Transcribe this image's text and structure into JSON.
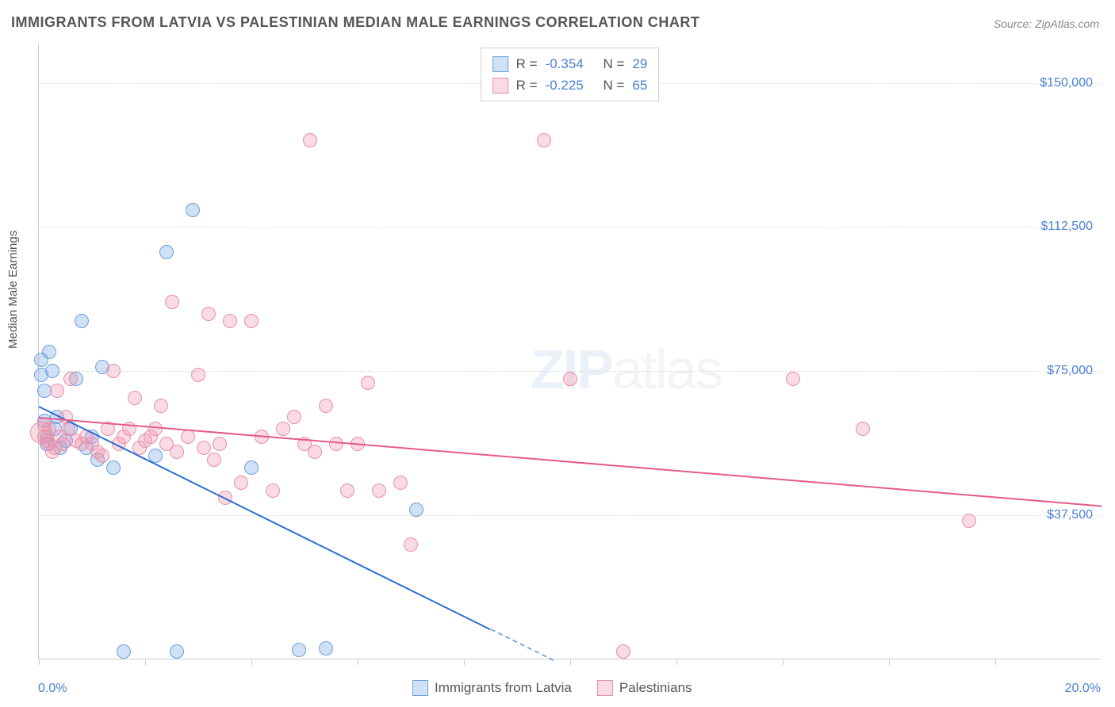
{
  "title": "IMMIGRANTS FROM LATVIA VS PALESTINIAN MEDIAN MALE EARNINGS CORRELATION CHART",
  "source_prefix": "Source: ",
  "source_name": "ZipAtlas.com",
  "watermark_a": "ZIP",
  "watermark_b": "atlas",
  "chart": {
    "type": "scatter",
    "ylabel": "Median Male Earnings",
    "xmin": 0.0,
    "xmax": 20.0,
    "ymin": 0,
    "ymax": 160000,
    "yticks": [
      {
        "v": 37500,
        "label": "$37,500"
      },
      {
        "v": 75000,
        "label": "$75,000"
      },
      {
        "v": 112500,
        "label": "$112,500"
      },
      {
        "v": 150000,
        "label": "$150,000"
      }
    ],
    "xtick_positions": [
      0,
      2,
      4,
      6,
      8,
      10,
      12,
      14,
      16,
      18
    ],
    "xtick_labels": {
      "left": "0.0%",
      "right": "20.0%"
    },
    "background_color": "#ffffff",
    "grid_color": "#e2e2e2",
    "axis_color": "#cccccc",
    "label_color": "#555555",
    "tick_label_color": "#4a7fd6",
    "marker_radius": 9,
    "series": [
      {
        "name": "Immigrants from Latvia",
        "fill": "rgba(120,170,230,0.35)",
        "stroke": "#6aa0e0",
        "line_color": "#2e6fd2",
        "R": "-0.354",
        "N": "29",
        "trend": {
          "x1": 0.0,
          "y1": 66000,
          "x2": 8.5,
          "y2": 8000
        },
        "points": [
          {
            "x": 0.05,
            "y": 78000
          },
          {
            "x": 0.05,
            "y": 74000
          },
          {
            "x": 0.1,
            "y": 70000
          },
          {
            "x": 0.1,
            "y": 62000
          },
          {
            "x": 0.15,
            "y": 58000
          },
          {
            "x": 0.15,
            "y": 56000
          },
          {
            "x": 0.2,
            "y": 80000
          },
          {
            "x": 0.25,
            "y": 75000
          },
          {
            "x": 0.3,
            "y": 60000
          },
          {
            "x": 0.35,
            "y": 63000
          },
          {
            "x": 0.4,
            "y": 55000
          },
          {
            "x": 0.5,
            "y": 57000
          },
          {
            "x": 0.6,
            "y": 60000
          },
          {
            "x": 0.7,
            "y": 73000
          },
          {
            "x": 0.8,
            "y": 88000
          },
          {
            "x": 0.9,
            "y": 55000
          },
          {
            "x": 1.0,
            "y": 58000
          },
          {
            "x": 1.1,
            "y": 52000
          },
          {
            "x": 1.2,
            "y": 76000
          },
          {
            "x": 1.4,
            "y": 50000
          },
          {
            "x": 1.6,
            "y": 2000
          },
          {
            "x": 2.2,
            "y": 53000
          },
          {
            "x": 2.6,
            "y": 2000
          },
          {
            "x": 2.9,
            "y": 117000
          },
          {
            "x": 2.4,
            "y": 106000
          },
          {
            "x": 4.0,
            "y": 50000
          },
          {
            "x": 4.9,
            "y": 2500
          },
          {
            "x": 7.1,
            "y": 39000
          },
          {
            "x": 5.4,
            "y": 2800
          }
        ]
      },
      {
        "name": "Palestinians",
        "fill": "rgba(240,150,175,0.35)",
        "stroke": "#e690ac",
        "line_color": "#e65a8a",
        "R": "-0.225",
        "N": "65",
        "trend": {
          "x1": 0.0,
          "y1": 63000,
          "x2": 20.0,
          "y2": 40000
        },
        "points": [
          {
            "x": 0.1,
            "y": 61000
          },
          {
            "x": 0.1,
            "y": 58000
          },
          {
            "x": 0.15,
            "y": 57000
          },
          {
            "x": 0.2,
            "y": 60000
          },
          {
            "x": 0.2,
            "y": 56000
          },
          {
            "x": 0.25,
            "y": 54000
          },
          {
            "x": 0.3,
            "y": 55000
          },
          {
            "x": 0.35,
            "y": 70000
          },
          {
            "x": 0.4,
            "y": 58000
          },
          {
            "x": 0.45,
            "y": 56000
          },
          {
            "x": 0.5,
            "y": 63000
          },
          {
            "x": 0.55,
            "y": 60000
          },
          {
            "x": 0.6,
            "y": 73000
          },
          {
            "x": 0.7,
            "y": 57000
          },
          {
            "x": 0.8,
            "y": 56000
          },
          {
            "x": 0.9,
            "y": 58000
          },
          {
            "x": 1.0,
            "y": 56000
          },
          {
            "x": 1.1,
            "y": 54000
          },
          {
            "x": 1.2,
            "y": 53000
          },
          {
            "x": 1.3,
            "y": 60000
          },
          {
            "x": 1.4,
            "y": 75000
          },
          {
            "x": 1.5,
            "y": 56000
          },
          {
            "x": 1.6,
            "y": 58000
          },
          {
            "x": 1.7,
            "y": 60000
          },
          {
            "x": 1.8,
            "y": 68000
          },
          {
            "x": 1.9,
            "y": 55000
          },
          {
            "x": 2.0,
            "y": 57000
          },
          {
            "x": 2.1,
            "y": 58000
          },
          {
            "x": 2.2,
            "y": 60000
          },
          {
            "x": 2.3,
            "y": 66000
          },
          {
            "x": 2.4,
            "y": 56000
          },
          {
            "x": 2.5,
            "y": 93000
          },
          {
            "x": 2.6,
            "y": 54000
          },
          {
            "x": 2.8,
            "y": 58000
          },
          {
            "x": 3.0,
            "y": 74000
          },
          {
            "x": 3.1,
            "y": 55000
          },
          {
            "x": 3.2,
            "y": 90000
          },
          {
            "x": 3.3,
            "y": 52000
          },
          {
            "x": 3.4,
            "y": 56000
          },
          {
            "x": 3.5,
            "y": 42000
          },
          {
            "x": 3.6,
            "y": 88000
          },
          {
            "x": 3.8,
            "y": 46000
          },
          {
            "x": 4.0,
            "y": 88000
          },
          {
            "x": 4.2,
            "y": 58000
          },
          {
            "x": 4.4,
            "y": 44000
          },
          {
            "x": 4.6,
            "y": 60000
          },
          {
            "x": 4.8,
            "y": 63000
          },
          {
            "x": 5.0,
            "y": 56000
          },
          {
            "x": 5.1,
            "y": 135000
          },
          {
            "x": 5.2,
            "y": 54000
          },
          {
            "x": 5.4,
            "y": 66000
          },
          {
            "x": 5.6,
            "y": 56000
          },
          {
            "x": 5.8,
            "y": 44000
          },
          {
            "x": 6.0,
            "y": 56000
          },
          {
            "x": 6.2,
            "y": 72000
          },
          {
            "x": 6.4,
            "y": 44000
          },
          {
            "x": 6.8,
            "y": 46000
          },
          {
            "x": 7.0,
            "y": 30000
          },
          {
            "x": 9.5,
            "y": 135000
          },
          {
            "x": 10.0,
            "y": 73000
          },
          {
            "x": 11.0,
            "y": 2000
          },
          {
            "x": 14.2,
            "y": 73000
          },
          {
            "x": 15.5,
            "y": 60000
          },
          {
            "x": 17.5,
            "y": 36000
          },
          {
            "x": 0.05,
            "y": 59000,
            "r": 14
          }
        ]
      }
    ],
    "stats_labels": {
      "R": "R =",
      "N": "N ="
    },
    "legend_bottom_items": [
      "Immigrants from Latvia",
      "Palestinians"
    ]
  }
}
